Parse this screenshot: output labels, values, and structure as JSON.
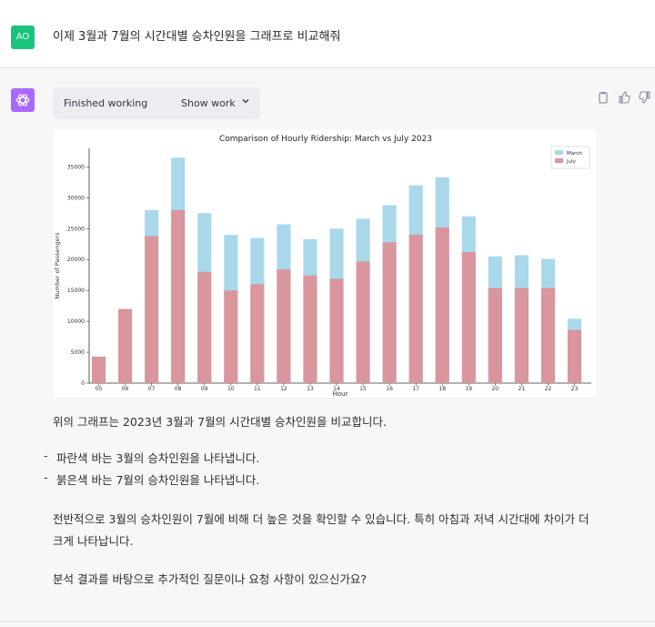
{
  "user_message": {
    "avatar_initials": "AO",
    "text": "이제 3월과 7월의 시간대별 승차인원을 그래프로 비교해줘"
  },
  "assistant": {
    "status_label": "Finished working",
    "show_work_label": "Show work",
    "paragraph1": "위의 그래프는 2023년 3월과 7월의 시간대별 승차인원을 비교합니다.",
    "bullets": [
      "파란색 바는 3월의 승차인원을 나타냅니다.",
      "붉은색 바는 7월의 승차인원을 나타냅니다."
    ],
    "paragraph2": "전반적으로 3월의 승차인원이 7월에 비해 더 높은 것을 확인할 수 있습니다. 특히 아침과 저녁 시간대에 차이가 더 크게 나타납니다.",
    "paragraph3": "분석 결과를 바탕으로 추가적인 질문이나 요청 사항이 있으신가요?"
  },
  "colors": {
    "march": "#a8d8ea",
    "july": "#d9969c",
    "user_avatar": "#19c37d",
    "gpt_avatar": "#ab68ff"
  },
  "icons": [
    "clipboard-icon",
    "thumbs-up-icon",
    "thumbs-down-icon",
    "chevron-down-icon",
    "openai-logo-icon"
  ],
  "chart_data": {
    "type": "bar",
    "stacked": "overlay",
    "title": "Comparison of Hourly Ridership: March vs July 2023",
    "xlabel": "Hour",
    "ylabel": "Number of Passengers",
    "categories": [
      "05",
      "06",
      "07",
      "08",
      "09",
      "10",
      "11",
      "12",
      "13",
      "14",
      "15",
      "16",
      "17",
      "18",
      "19",
      "20",
      "21",
      "22",
      "23"
    ],
    "series": [
      {
        "name": "March",
        "values": [
          4000,
          12000,
          28000,
          36500,
          27500,
          24000,
          23500,
          25700,
          23300,
          25000,
          26600,
          28800,
          32000,
          33300,
          27000,
          20500,
          20700,
          20100,
          10400
        ]
      },
      {
        "name": "July",
        "values": [
          4300,
          12000,
          23800,
          28000,
          18000,
          15000,
          16000,
          18400,
          17400,
          16900,
          19700,
          22800,
          24000,
          25200,
          21200,
          15400,
          15400,
          15400,
          8600
        ]
      }
    ],
    "yticks": [
      0,
      5000,
      10000,
      15000,
      20000,
      25000,
      30000,
      35000
    ],
    "ylim": [
      0,
      38000
    ],
    "legend": "top-right",
    "grid": false
  }
}
